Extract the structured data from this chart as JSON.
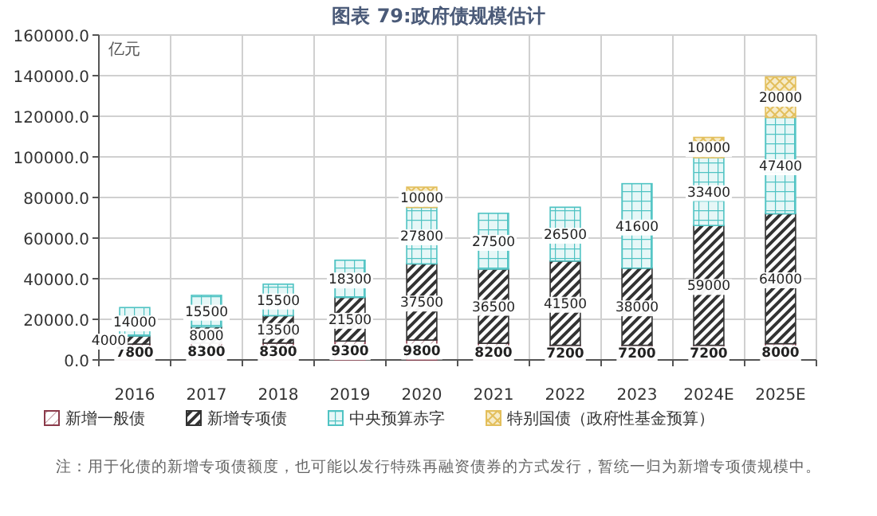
{
  "chart_data": {
    "type": "bar",
    "stacked": true,
    "title": "图表 79:政府债规模估计",
    "ylabel": "亿元",
    "categories": [
      "2016",
      "2017",
      "2018",
      "2019",
      "2020",
      "2021",
      "2022",
      "2023",
      "2024E",
      "2025E"
    ],
    "series": [
      {
        "name": "新增一般债",
        "color": "#8b3a4a",
        "values": [
          7800,
          8300,
          8300,
          9300,
          9800,
          8200,
          7200,
          7200,
          7200,
          8000
        ]
      },
      {
        "name": "新增专项债",
        "color": "#333333",
        "values": [
          4000,
          8000,
          13500,
          21500,
          37500,
          36500,
          41500,
          38000,
          59000,
          64000
        ]
      },
      {
        "name": "中央预算赤字",
        "color": "#4fc3c3",
        "values": [
          14000,
          15500,
          15500,
          18300,
          27800,
          27500,
          26500,
          41600,
          33400,
          47400
        ]
      },
      {
        "name": "特别国债（政府性基金预算）",
        "color": "#e3bf5c",
        "values": [
          null,
          null,
          null,
          null,
          10000,
          null,
          null,
          null,
          10000,
          20000
        ]
      }
    ],
    "ylim": [
      0,
      160000
    ],
    "yticks": [
      {
        "value": 0,
        "label": "0.0"
      },
      {
        "value": 20000,
        "label": "20000.0"
      },
      {
        "value": 40000,
        "label": "40000.0"
      },
      {
        "value": 60000,
        "label": "60000.0"
      },
      {
        "value": 80000,
        "label": "80000.0"
      },
      {
        "value": 100000,
        "label": "100000.0"
      },
      {
        "value": 120000,
        "label": "120000.0"
      },
      {
        "value": 140000,
        "label": "140000.0"
      },
      {
        "value": 160000,
        "label": "160000.0"
      }
    ],
    "grid": true,
    "legend": "bottom",
    "data_labels": true,
    "annotations": [
      "注：用于化债的新增专项债额度，也可能以发行特殊再融资债券的方式发行，暂统一归为新增专项债规模中。"
    ]
  }
}
